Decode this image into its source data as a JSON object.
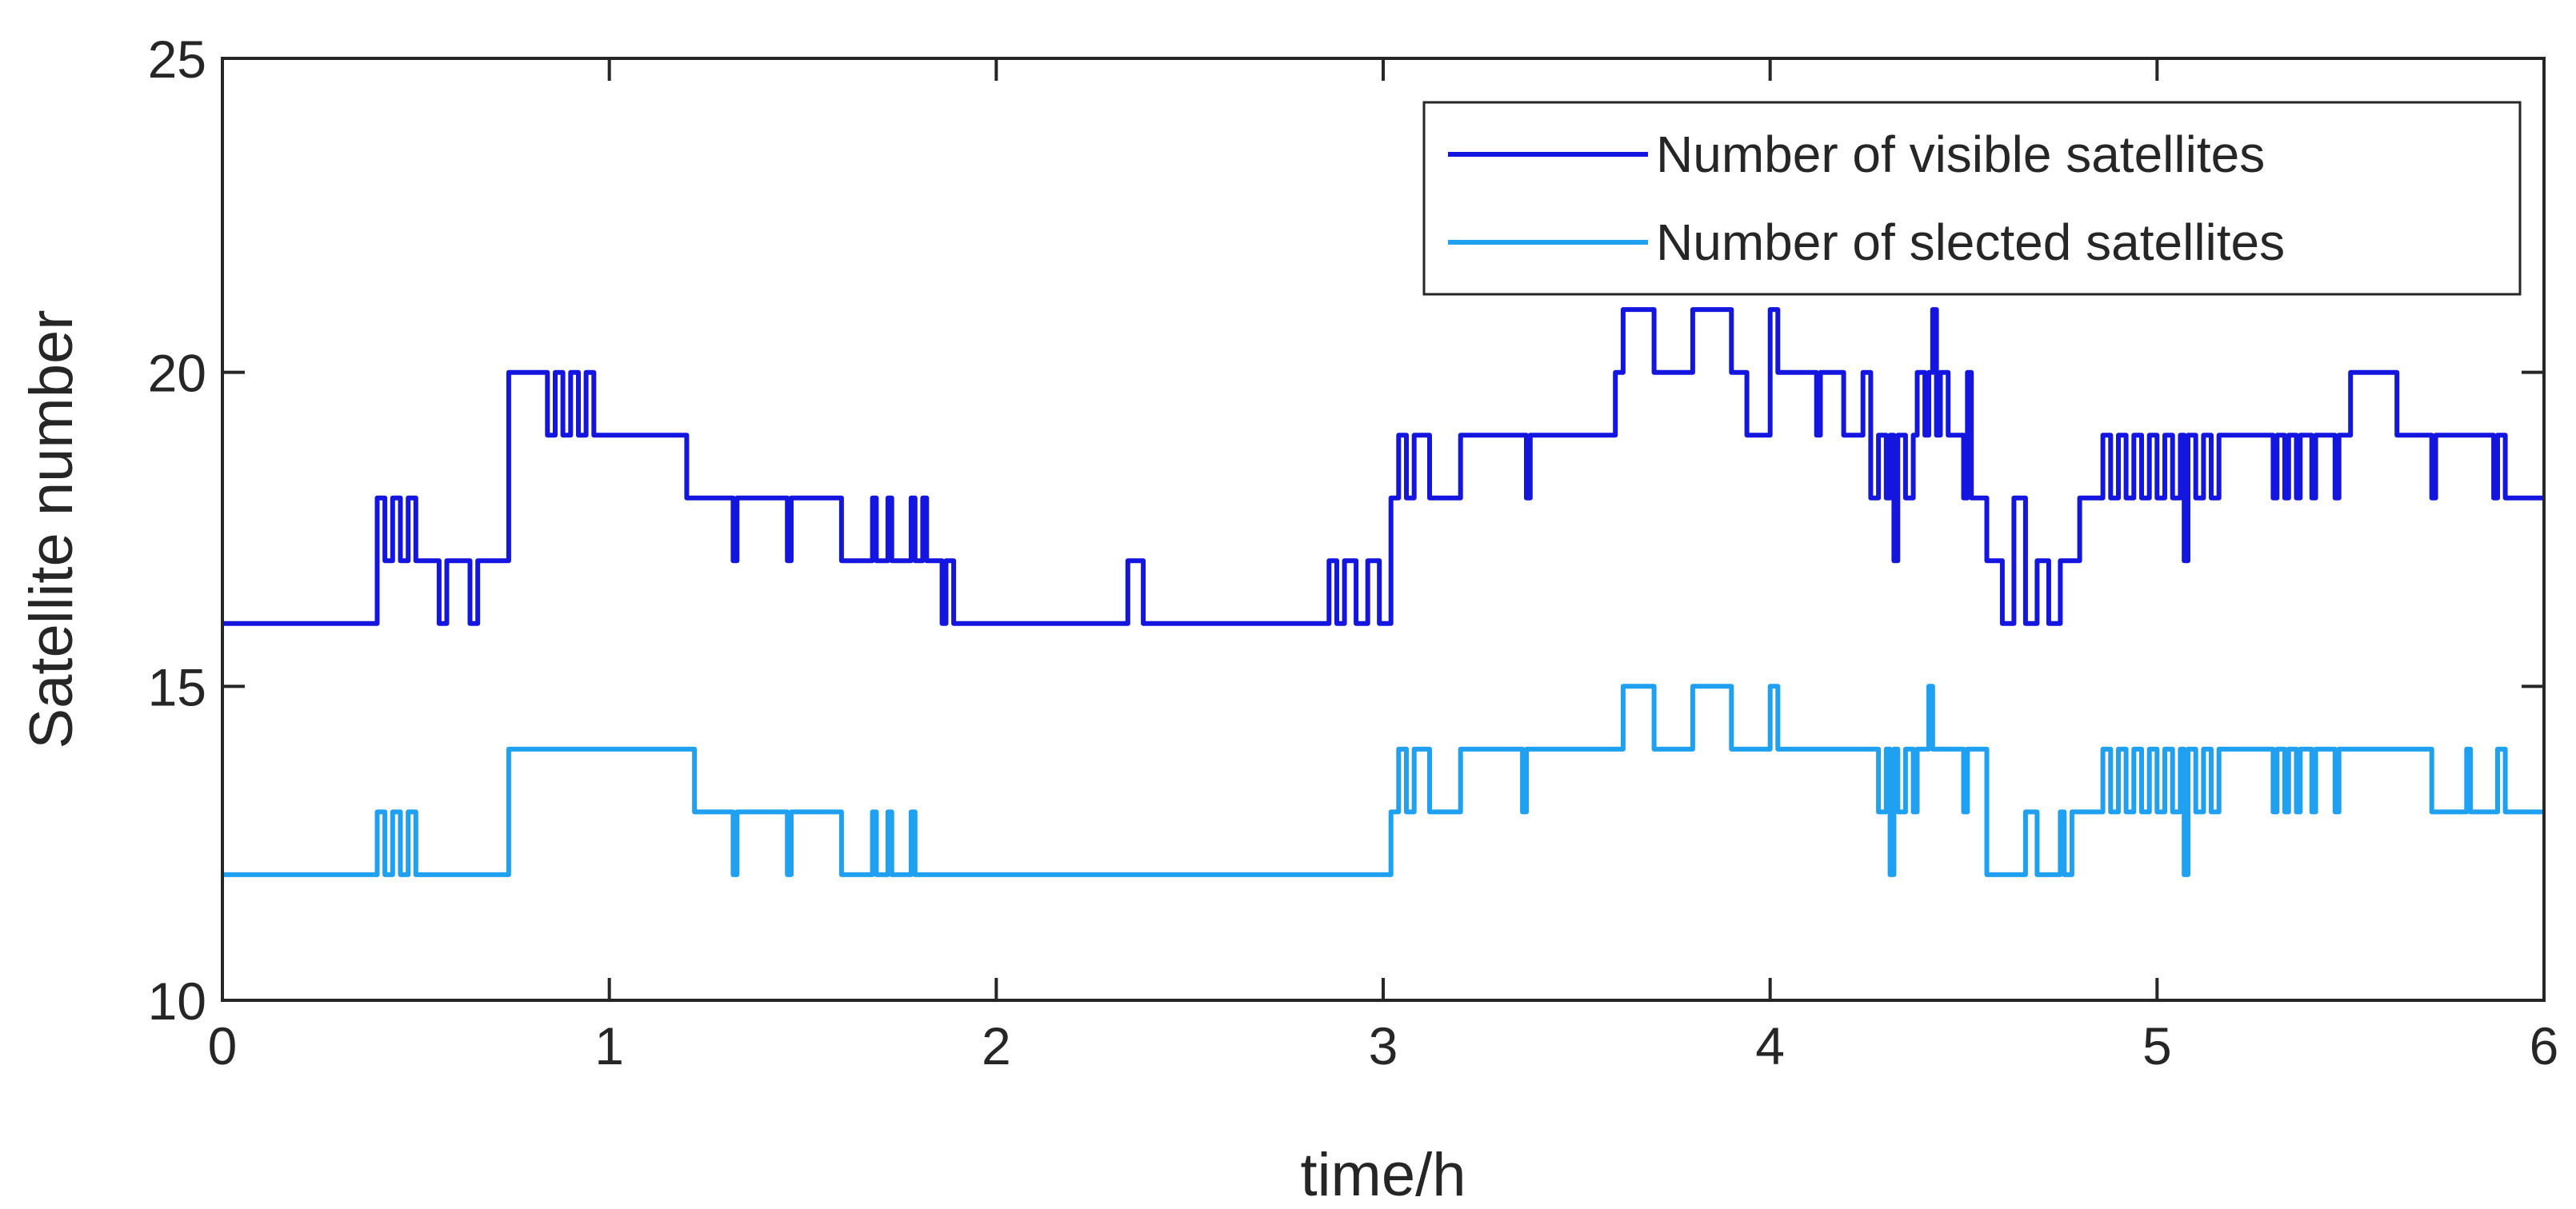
{
  "chart_data": {
    "type": "line",
    "step": true,
    "title": "",
    "xlabel": "time/h",
    "ylabel": "Satellite number",
    "xlim": [
      0,
      6
    ],
    "ylim": [
      10,
      25
    ],
    "xticks": [
      0,
      1,
      2,
      3,
      4,
      5,
      6
    ],
    "yticks": [
      10,
      15,
      20,
      25
    ],
    "grid": false,
    "legend_position": "top-right",
    "series": [
      {
        "name": "Number of visible satellites",
        "color": "#1515e0",
        "x": [
          0,
          0.4,
          0.42,
          0.44,
          0.46,
          0.48,
          0.5,
          0.56,
          0.58,
          0.6,
          0.64,
          0.66,
          0.72,
          0.74,
          0.82,
          0.84,
          0.86,
          0.88,
          0.9,
          0.92,
          0.94,
          0.96,
          0.98,
          1.2,
          1.22,
          1.24,
          1.32,
          1.33,
          1.46,
          1.47,
          1.52,
          1.54,
          1.6,
          1.64,
          1.68,
          1.69,
          1.72,
          1.73,
          1.78,
          1.79,
          1.81,
          1.82,
          1.86,
          1.87,
          1.89,
          1.92,
          2.34,
          2.38,
          2.42,
          2.86,
          2.88,
          2.9,
          2.93,
          2.96,
          2.99,
          3.02,
          3.04,
          3.06,
          3.08,
          3.12,
          3.16,
          3.2,
          3.36,
          3.37,
          3.38,
          3.6,
          3.62,
          3.64,
          3.7,
          3.78,
          3.8,
          3.86,
          3.9,
          3.94,
          4.0,
          4.02,
          4.06,
          4.12,
          4.13,
          4.18,
          4.19,
          4.24,
          4.26,
          4.28,
          4.3,
          4.31,
          4.32,
          4.33,
          4.35,
          4.37,
          4.38,
          4.4,
          4.41,
          4.42,
          4.43,
          4.44,
          4.46,
          4.5,
          4.51,
          4.52,
          4.54,
          4.56,
          4.58,
          4.6,
          4.63,
          4.66,
          4.69,
          4.72,
          4.75,
          4.78,
          4.8,
          4.84,
          4.86,
          4.88,
          4.9,
          4.92,
          4.94,
          4.96,
          4.98,
          5.0,
          5.02,
          5.04,
          5.06,
          5.07,
          5.08,
          5.1,
          5.12,
          5.14,
          5.16,
          5.18,
          5.3,
          5.31,
          5.33,
          5.34,
          5.36,
          5.37,
          5.4,
          5.41,
          5.46,
          5.47,
          5.48,
          5.5,
          5.6,
          5.62,
          5.7,
          5.71,
          5.72,
          5.74,
          5.86,
          5.87,
          5.88,
          5.9,
          5.96,
          6.0
        ],
        "y": [
          16,
          18,
          17,
          18,
          17,
          18,
          17,
          16,
          17,
          17,
          16,
          17,
          17,
          20,
          20,
          19,
          20,
          19,
          20,
          19,
          20,
          19,
          19,
          18,
          18,
          18,
          17,
          18,
          17,
          18,
          18,
          18,
          17,
          17,
          18,
          17,
          18,
          17,
          18,
          17,
          18,
          17,
          16,
          17,
          16,
          16,
          17,
          16,
          16,
          17,
          16,
          17,
          16,
          17,
          16,
          18,
          19,
          18,
          19,
          18,
          18,
          19,
          19,
          18,
          19,
          20,
          21,
          21,
          20,
          20,
          21,
          21,
          20,
          19,
          21,
          20,
          20,
          19,
          20,
          20,
          19,
          20,
          18,
          19,
          18,
          19,
          17,
          19,
          18,
          19,
          20,
          19,
          20,
          21,
          19,
          20,
          19,
          18,
          20,
          18,
          18,
          17,
          17,
          16,
          18,
          16,
          17,
          16,
          17,
          17,
          18,
          18,
          19,
          18,
          19,
          18,
          19,
          18,
          19,
          18,
          19,
          18,
          19,
          17,
          19,
          18,
          19,
          18,
          19,
          19,
          18,
          19,
          18,
          19,
          18,
          19,
          18,
          19,
          18,
          19,
          19,
          20,
          20,
          19,
          19,
          18,
          19,
          19,
          19,
          18,
          19,
          18,
          18,
          18
        ]
      },
      {
        "name": "Number of slected satellites",
        "color": "#20a0f0",
        "x": [
          0,
          0.4,
          0.42,
          0.44,
          0.46,
          0.48,
          0.5,
          0.74,
          1.2,
          1.22,
          1.24,
          1.32,
          1.33,
          1.46,
          1.47,
          1.52,
          1.54,
          1.6,
          1.64,
          1.68,
          1.69,
          1.72,
          1.73,
          1.78,
          1.79,
          1.81,
          1.82,
          3.02,
          3.04,
          3.06,
          3.08,
          3.12,
          3.16,
          3.2,
          3.36,
          3.37,
          3.38,
          3.6,
          3.62,
          3.64,
          3.7,
          3.78,
          3.8,
          3.86,
          3.9,
          3.94,
          4.0,
          4.02,
          4.06,
          4.26,
          4.28,
          4.3,
          4.31,
          4.32,
          4.33,
          4.35,
          4.37,
          4.38,
          4.4,
          4.41,
          4.42,
          4.43,
          4.44,
          4.5,
          4.51,
          4.52,
          4.54,
          4.56,
          4.58,
          4.66,
          4.69,
          4.72,
          4.75,
          4.76,
          4.78,
          4.84,
          4.86,
          4.88,
          4.9,
          4.92,
          4.94,
          4.96,
          4.98,
          5.0,
          5.02,
          5.04,
          5.06,
          5.07,
          5.08,
          5.1,
          5.12,
          5.14,
          5.16,
          5.18,
          5.3,
          5.31,
          5.33,
          5.34,
          5.36,
          5.37,
          5.4,
          5.41,
          5.46,
          5.47,
          5.7,
          5.71,
          5.8,
          5.81,
          5.88,
          5.9,
          6.0
        ],
        "y": [
          12,
          13,
          12,
          13,
          12,
          13,
          12,
          14,
          14,
          13,
          13,
          12,
          13,
          12,
          13,
          13,
          13,
          12,
          12,
          13,
          12,
          13,
          12,
          13,
          12,
          12,
          12,
          13,
          14,
          13,
          14,
          13,
          13,
          14,
          13,
          14,
          14,
          14,
          15,
          15,
          14,
          14,
          15,
          15,
          14,
          14,
          15,
          14,
          14,
          14,
          13,
          14,
          12,
          14,
          13,
          14,
          13,
          14,
          14,
          15,
          14,
          14,
          14,
          13,
          14,
          14,
          14,
          12,
          12,
          13,
          12,
          12,
          13,
          12,
          13,
          13,
          14,
          13,
          14,
          13,
          14,
          13,
          14,
          13,
          14,
          13,
          14,
          12,
          14,
          13,
          14,
          13,
          14,
          14,
          13,
          14,
          13,
          14,
          13,
          14,
          13,
          14,
          13,
          14,
          14,
          13,
          14,
          13,
          14,
          13,
          13
        ]
      }
    ]
  }
}
